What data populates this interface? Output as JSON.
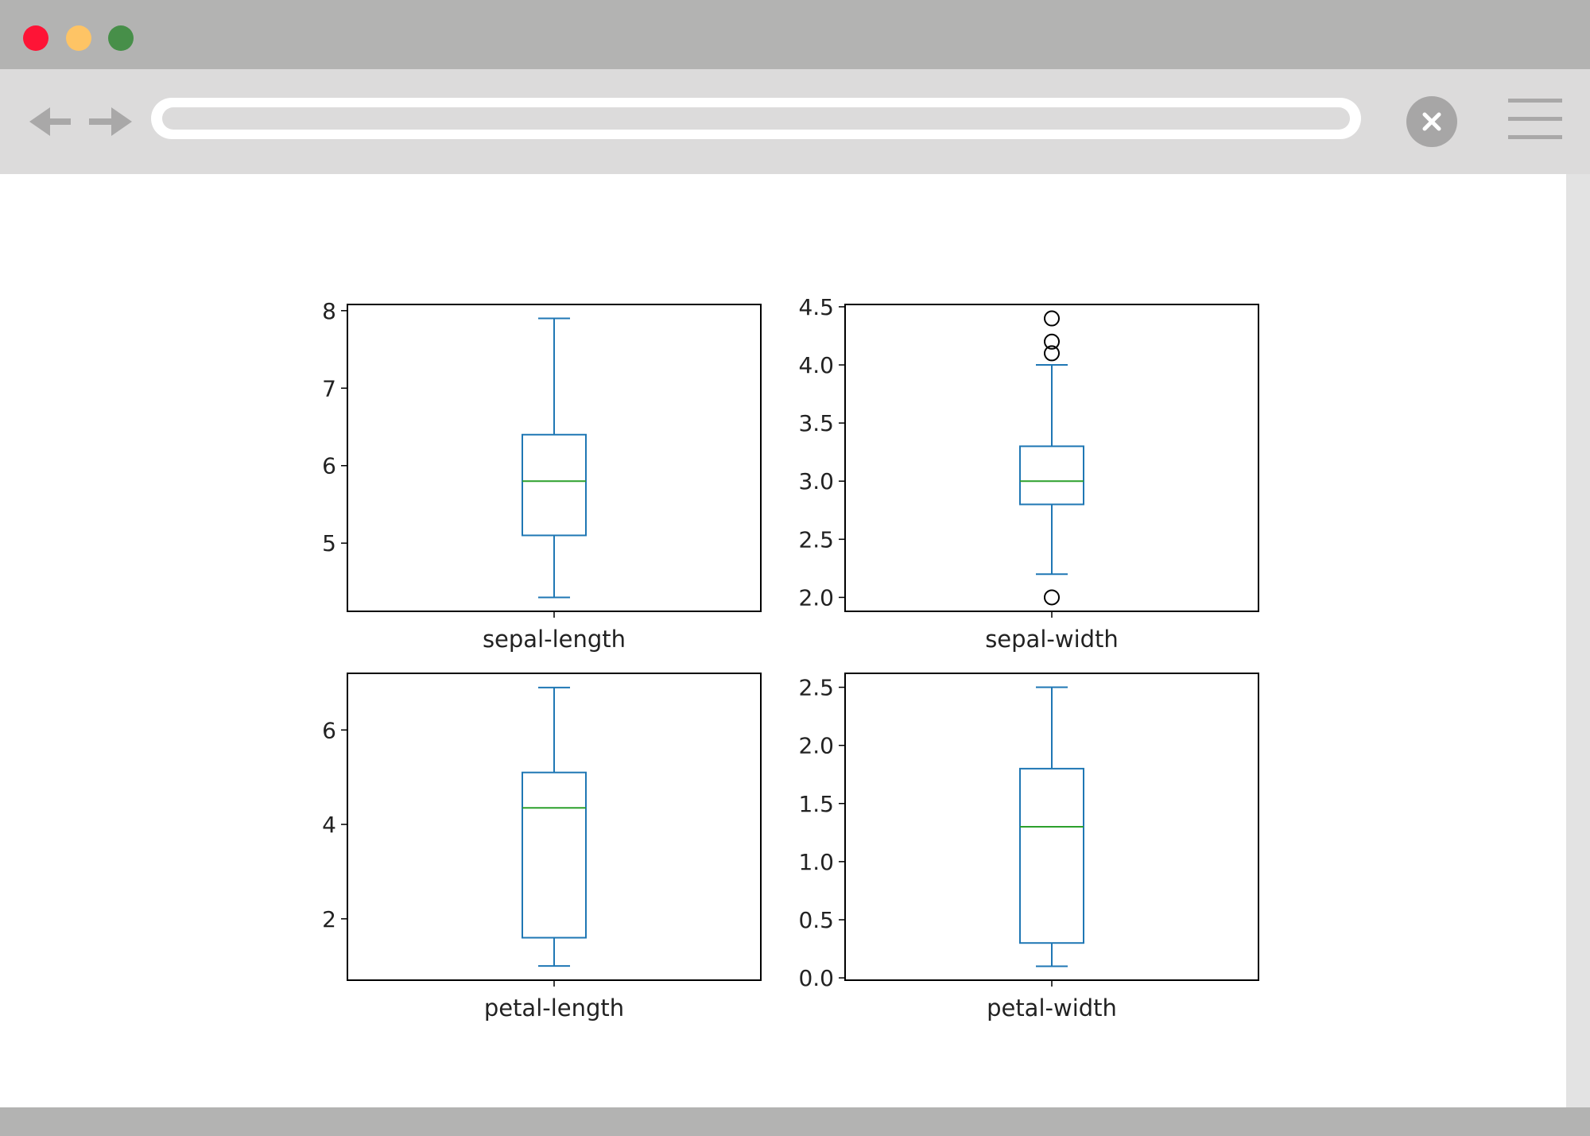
{
  "browser": {
    "address_value": "",
    "colors": {
      "titlebar": "#b3b3b2",
      "toolbar": "#dcdbdb",
      "close_red": "#fe1436",
      "minimize_yellow": "#fec465",
      "maximize_green": "#478f49"
    },
    "icons": [
      "arrow-left-icon",
      "arrow-right-icon",
      "close-icon",
      "hamburger-menu-icon"
    ]
  },
  "chart_data": [
    {
      "type": "box",
      "xlabel": "sepal-length",
      "yticks": [
        "5",
        "6",
        "7",
        "8"
      ],
      "ylim": [
        4.12,
        8.08
      ],
      "whisker_low": 4.3,
      "q1": 5.1,
      "median": 5.8,
      "q3": 6.4,
      "whisker_high": 7.9,
      "outliers": [],
      "grid": false
    },
    {
      "type": "box",
      "xlabel": "sepal-width",
      "yticks": [
        "2.0",
        "2.5",
        "3.0",
        "3.5",
        "4.0",
        "4.5"
      ],
      "ylim": [
        1.88,
        4.52
      ],
      "whisker_low": 2.2,
      "q1": 2.8,
      "median": 3.0,
      "q3": 3.3,
      "whisker_high": 4.0,
      "outliers": [
        2.0,
        4.1,
        4.2,
        4.4
      ],
      "grid": false
    },
    {
      "type": "box",
      "xlabel": "petal-length",
      "yticks": [
        "2",
        "4",
        "6"
      ],
      "ylim": [
        0.7,
        7.2
      ],
      "whisker_low": 1.0,
      "q1": 1.6,
      "median": 4.35,
      "q3": 5.1,
      "whisker_high": 6.9,
      "outliers": [],
      "grid": false
    },
    {
      "type": "box",
      "xlabel": "petal-width",
      "yticks": [
        "0.0",
        "0.5",
        "1.0",
        "1.5",
        "2.0",
        "2.5"
      ],
      "ylim": [
        -0.02,
        2.62
      ],
      "whisker_low": 0.1,
      "q1": 0.3,
      "median": 1.3,
      "q3": 1.8,
      "whisker_high": 2.5,
      "outliers": [],
      "grid": false
    }
  ],
  "chart_style": {
    "box_color": "#1f77b4",
    "median_color": "#2ca02c",
    "axis_color": "#000000",
    "text_color": "#222222"
  }
}
